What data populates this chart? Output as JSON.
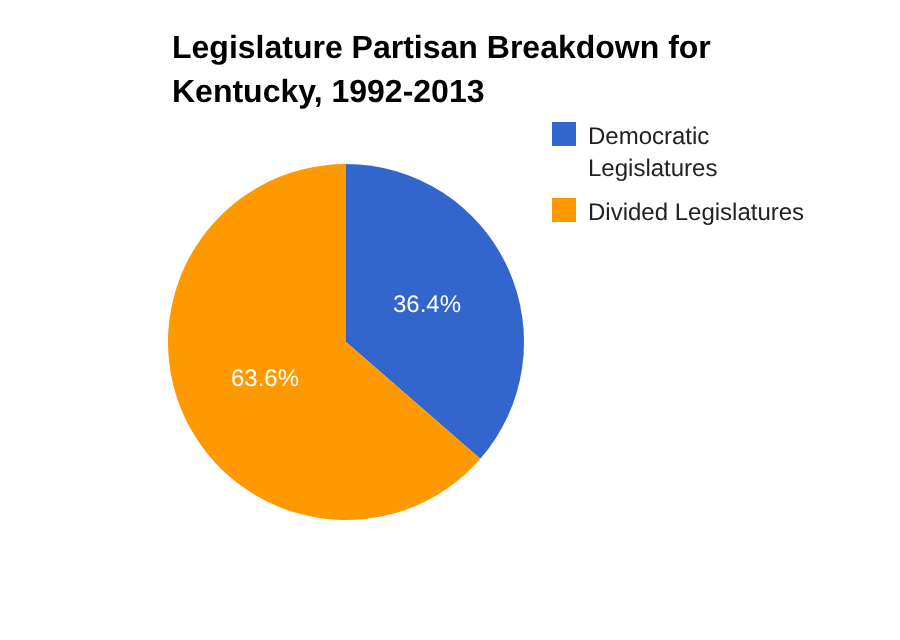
{
  "chart_data": {
    "type": "pie",
    "title": "Legislature Partisan Breakdown for Kentucky, 1992-2013",
    "categories": [
      "Democratic Legislatures",
      "Divided Legislatures"
    ],
    "values": [
      36.4,
      63.6
    ],
    "colors": [
      "#3366cc",
      "#ff9900"
    ],
    "value_labels": [
      "36.4%",
      "63.6%"
    ],
    "legend": "top right"
  }
}
